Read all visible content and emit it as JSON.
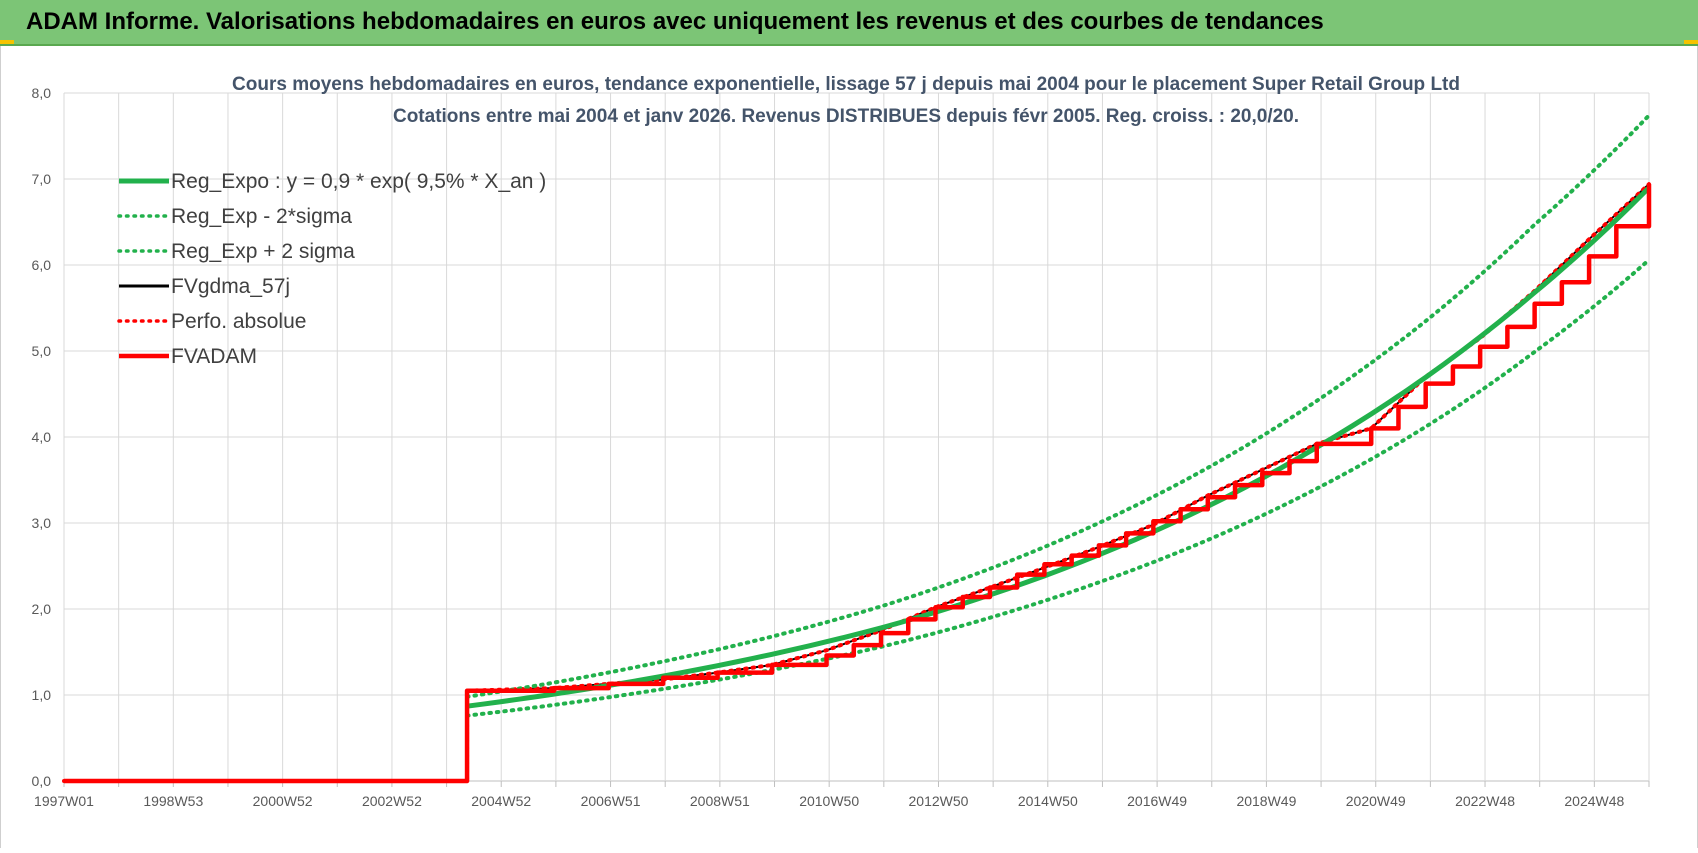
{
  "header": {
    "title": "ADAM Informe. Valorisations hebdomadaires en euros avec uniquement les revenus et des courbes de tendances"
  },
  "chart_data": {
    "type": "line",
    "title": "Cours moyens hebdomadaires en euros, tendance exponentielle, lissage 57 j depuis mai 2004 pour le placement Super Retail Group Ltd",
    "subtitle": "Cotations entre mai 2004 et janv 2026. Revenus DISTRIBUES depuis févr 2005. Reg. croiss. : 20,0/20.",
    "xlabel": "",
    "ylabel": "",
    "ylim": [
      0,
      8
    ],
    "y_ticks": [
      "0,0",
      "1,0",
      "2,0",
      "3,0",
      "4,0",
      "5,0",
      "6,0",
      "7,0",
      "8,0"
    ],
    "x_tick_labels": [
      "1997W01",
      "1998W53",
      "2000W52",
      "2002W52",
      "2004W52",
      "2006W51",
      "2008W51",
      "2010W50",
      "2012W50",
      "2014W50",
      "2016W49",
      "2018W49",
      "2020W49",
      "2022W48",
      "2024W48"
    ],
    "x_range_years": [
      1997.0,
      2026.1
    ],
    "grid": true,
    "legend_position": "top-left",
    "series": [
      {
        "name": "Reg_Expo : y = 0,9 * exp( 9,5% *  X_an )",
        "color": "#22b14c",
        "style": "solid",
        "x": [
          2004.4,
          2008.0,
          2012.0,
          2016.0,
          2020.0,
          2024.0,
          2026.1
        ],
        "y": [
          0.87,
          1.22,
          1.78,
          2.63,
          3.88,
          5.68,
          6.9
        ]
      },
      {
        "name": "Reg_Exp - 2*sigma",
        "color": "#22b14c",
        "style": "dotted",
        "x": [
          2004.4,
          2008.0,
          2012.0,
          2016.0,
          2020.0,
          2024.0,
          2026.1
        ],
        "y": [
          0.76,
          1.07,
          1.56,
          2.31,
          3.4,
          4.99,
          6.06
        ]
      },
      {
        "name": "Reg_Exp + 2 sigma",
        "color": "#22b14c",
        "style": "dotted",
        "x": [
          2004.4,
          2008.0,
          2012.0,
          2016.0,
          2020.0,
          2024.0,
          2026.1
        ],
        "y": [
          0.98,
          1.39,
          2.03,
          3.0,
          4.42,
          6.47,
          7.74
        ]
      },
      {
        "name": "FVgdma_57j",
        "color": "#000000",
        "style": "solid",
        "x": [
          1997.0,
          2004.4,
          2004.4,
          2006.0,
          2008.0,
          2009.0,
          2010.0,
          2011.0,
          2012.0,
          2013.0,
          2014.0,
          2015.0,
          2016.0,
          2017.0,
          2018.0,
          2019.0,
          2020.0,
          2021.0,
          2022.0,
          2023.0,
          2024.0,
          2025.0,
          2026.1
        ],
        "y": [
          0.0,
          0.0,
          1.05,
          1.08,
          1.18,
          1.26,
          1.35,
          1.52,
          1.75,
          2.02,
          2.25,
          2.48,
          2.72,
          2.98,
          3.32,
          3.62,
          3.92,
          4.1,
          4.7,
          5.15,
          5.7,
          6.3,
          6.94
        ]
      },
      {
        "name": "Perfo. absolue",
        "color": "#ff0000",
        "style": "dotted",
        "x": [
          1997.0,
          2004.4,
          2004.4,
          2006.0,
          2008.0,
          2009.0,
          2010.0,
          2011.0,
          2012.0,
          2013.0,
          2014.0,
          2015.0,
          2016.0,
          2017.0,
          2018.0,
          2019.0,
          2020.0,
          2021.0,
          2022.0,
          2023.0,
          2024.0,
          2025.0,
          2026.1
        ],
        "y": [
          0.0,
          0.0,
          1.05,
          1.08,
          1.18,
          1.26,
          1.35,
          1.52,
          1.75,
          2.02,
          2.25,
          2.48,
          2.72,
          2.98,
          3.32,
          3.62,
          3.92,
          4.1,
          4.7,
          5.15,
          5.7,
          6.3,
          6.94
        ]
      },
      {
        "name": "FVADAM",
        "color": "#ff0000",
        "style": "step",
        "x": [
          1997.0,
          2004.4,
          2004.4,
          2006.0,
          2007.0,
          2008.0,
          2009.0,
          2010.0,
          2011.0,
          2011.5,
          2012.0,
          2012.5,
          2013.0,
          2013.5,
          2014.0,
          2014.5,
          2015.0,
          2015.5,
          2016.0,
          2016.5,
          2017.0,
          2017.5,
          2018.0,
          2018.5,
          2019.0,
          2019.5,
          2020.0,
          2020.5,
          2021.0,
          2021.5,
          2022.0,
          2022.5,
          2023.0,
          2023.5,
          2024.0,
          2024.5,
          2025.0,
          2025.5,
          2026.1
        ],
        "y": [
          0.0,
          0.0,
          1.05,
          1.08,
          1.13,
          1.2,
          1.26,
          1.35,
          1.46,
          1.58,
          1.72,
          1.88,
          2.02,
          2.14,
          2.25,
          2.4,
          2.52,
          2.62,
          2.74,
          2.88,
          3.02,
          3.16,
          3.3,
          3.44,
          3.58,
          3.72,
          3.92,
          3.92,
          4.1,
          4.35,
          4.62,
          4.82,
          5.05,
          5.28,
          5.55,
          5.8,
          6.1,
          6.45,
          6.94
        ]
      }
    ]
  }
}
